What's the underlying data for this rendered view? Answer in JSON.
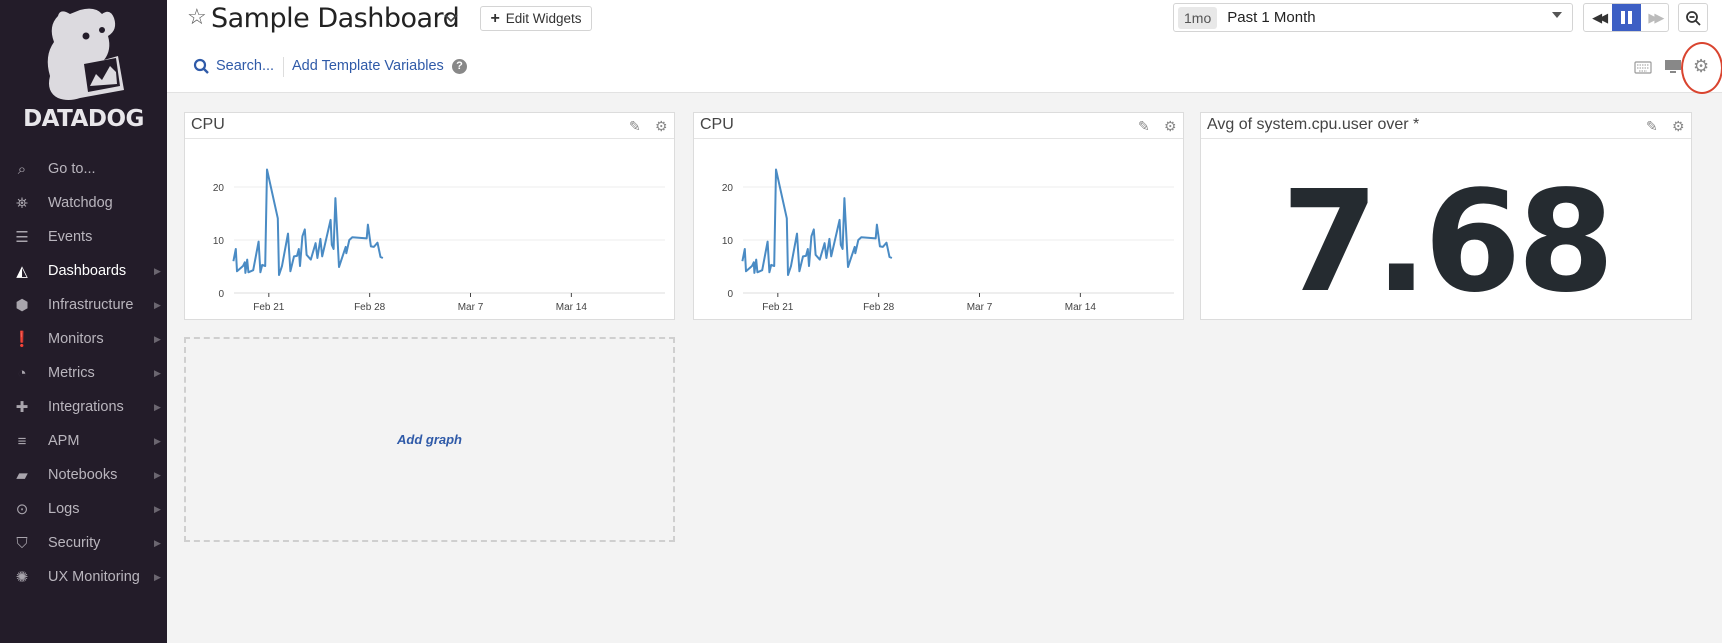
{
  "sidebar": {
    "brand": "DATADOG",
    "items": [
      {
        "label": "Go to...",
        "icon": "search-icon",
        "arrow": false
      },
      {
        "label": "Watchdog",
        "icon": "binoculars-icon",
        "arrow": false
      },
      {
        "label": "Events",
        "icon": "events-icon",
        "arrow": false
      },
      {
        "label": "Dashboards",
        "icon": "dashboards-icon",
        "arrow": true,
        "active": true
      },
      {
        "label": "Infrastructure",
        "icon": "infrastructure-icon",
        "arrow": true
      },
      {
        "label": "Monitors",
        "icon": "monitors-icon",
        "arrow": true
      },
      {
        "label": "Metrics",
        "icon": "metrics-icon",
        "arrow": true
      },
      {
        "label": "Integrations",
        "icon": "puzzle-icon",
        "arrow": true
      },
      {
        "label": "APM",
        "icon": "apm-icon",
        "arrow": true
      },
      {
        "label": "Notebooks",
        "icon": "notebook-icon",
        "arrow": true
      },
      {
        "label": "Logs",
        "icon": "logs-icon",
        "arrow": true
      },
      {
        "label": "Security",
        "icon": "shield-icon",
        "arrow": true
      },
      {
        "label": "UX Monitoring",
        "icon": "ux-monitoring-icon",
        "arrow": true
      }
    ]
  },
  "header": {
    "title": "Sample Dashboard",
    "edit_widgets": "Edit Widgets",
    "search": "Search...",
    "add_template_variables": "Add Template Variables",
    "time_badge": "1mo",
    "time_range": "Past 1 Month"
  },
  "colors": {
    "accent": "#3d5fc4",
    "line": "#4a8bc4",
    "sidebar": "#231c29",
    "annotation": "#d9442f"
  },
  "widgets": [
    {
      "title": "CPU"
    },
    {
      "title": "CPU"
    },
    {
      "title": "Avg of system.cpu.user over *",
      "value": "7.68"
    }
  ],
  "add_graph": "Add graph",
  "chart_data": [
    {
      "type": "line",
      "title": "CPU",
      "ylim": [
        0,
        23
      ],
      "yticks": [
        "0",
        "10",
        "20"
      ],
      "xticks": [
        "Feb 21",
        "Feb 28",
        "Mar 7",
        "Mar 14"
      ],
      "xlim": [
        "Feb 18 14:00",
        "Mar 20 12:00"
      ],
      "grid": true,
      "points": [
        [
          "Feb 18 13:00",
          6.0
        ],
        [
          "Feb 18 17:00",
          8.3
        ],
        [
          "Feb 18 19:00",
          4.1
        ],
        [
          "Feb 19 05:00",
          5.1
        ],
        [
          "Feb 19 08:00",
          5.8
        ],
        [
          "Feb 19 09:00",
          3.8
        ],
        [
          "Feb 19 12:00",
          6.3
        ],
        [
          "Feb 19 14:00",
          3.9
        ],
        [
          "Feb 19 22:00",
          4.3
        ],
        [
          "Feb 20 07:00",
          9.7
        ],
        [
          "Feb 20 10:00",
          3.9
        ],
        [
          "Feb 20 13:00",
          5.3
        ],
        [
          "Feb 20 18:00",
          5.1
        ],
        [
          "Feb 20 21:00",
          23.3
        ],
        [
          "Feb 21 15:00",
          14.1
        ],
        [
          "Feb 21 17:00",
          3.4
        ],
        [
          "Feb 21 22:00",
          5.1
        ],
        [
          "Feb 22 08:00",
          11.2
        ],
        [
          "Feb 22 12:00",
          4.1
        ],
        [
          "Feb 22 18:00",
          6.9
        ],
        [
          "Feb 22 23:00",
          7.0
        ],
        [
          "Feb 23 02:00",
          8.3
        ],
        [
          "Feb 23 04:00",
          5.1
        ],
        [
          "Feb 23 08:00",
          10.7
        ],
        [
          "Feb 23 12:00",
          12.0
        ],
        [
          "Feb 23 15:00",
          7.2
        ],
        [
          "Feb 23 22:00",
          6.3
        ],
        [
          "Feb 24 06:00",
          9.4
        ],
        [
          "Feb 24 09:00",
          6.6
        ],
        [
          "Feb 24 14:00",
          10.2
        ],
        [
          "Feb 24 17:00",
          6.9
        ],
        [
          "Feb 25 07:00",
          13.8
        ],
        [
          "Feb 25 09:00",
          9.1
        ],
        [
          "Feb 25 12:00",
          8.3
        ],
        [
          "Feb 25 15:00",
          17.9
        ],
        [
          "Feb 25 21:00",
          4.9
        ],
        [
          "Feb 26 08:00",
          8.7
        ],
        [
          "Feb 26 09:00",
          7.5
        ],
        [
          "Feb 26 14:00",
          10.0
        ],
        [
          "Feb 26 19:00",
          10.5
        ],
        [
          "Feb 27 19:00",
          10.3
        ],
        [
          "Feb 27 21:00",
          12.9
        ],
        [
          "Feb 28 02:00",
          8.8
        ],
        [
          "Feb 28 07:00",
          8.7
        ],
        [
          "Feb 28 13:00",
          9.5
        ],
        [
          "Feb 28 18:00",
          6.8
        ],
        [
          "Feb 28 22:00",
          6.6
        ]
      ]
    },
    {
      "type": "line",
      "title": "CPU",
      "ylim": [
        0,
        23
      ],
      "yticks": [
        "0",
        "10",
        "20"
      ],
      "xticks": [
        "Feb 21",
        "Feb 28",
        "Mar 7",
        "Mar 14"
      ],
      "xlim": [
        "Feb 18 14:00",
        "Mar 20 12:00"
      ],
      "grid": true,
      "points": [
        [
          "Feb 18 13:00",
          6.0
        ],
        [
          "Feb 18 17:00",
          8.3
        ],
        [
          "Feb 18 19:00",
          4.1
        ],
        [
          "Feb 19 05:00",
          5.1
        ],
        [
          "Feb 19 08:00",
          5.8
        ],
        [
          "Feb 19 09:00",
          3.8
        ],
        [
          "Feb 19 12:00",
          6.3
        ],
        [
          "Feb 19 14:00",
          3.9
        ],
        [
          "Feb 19 22:00",
          4.3
        ],
        [
          "Feb 20 07:00",
          9.7
        ],
        [
          "Feb 20 10:00",
          3.9
        ],
        [
          "Feb 20 13:00",
          5.3
        ],
        [
          "Feb 20 18:00",
          5.1
        ],
        [
          "Feb 20 21:00",
          23.3
        ],
        [
          "Feb 21 15:00",
          14.1
        ],
        [
          "Feb 21 17:00",
          3.4
        ],
        [
          "Feb 21 22:00",
          5.1
        ],
        [
          "Feb 22 08:00",
          11.2
        ],
        [
          "Feb 22 12:00",
          4.1
        ],
        [
          "Feb 22 18:00",
          6.9
        ],
        [
          "Feb 22 23:00",
          7.0
        ],
        [
          "Feb 23 02:00",
          8.3
        ],
        [
          "Feb 23 04:00",
          5.1
        ],
        [
          "Feb 23 08:00",
          10.7
        ],
        [
          "Feb 23 12:00",
          12.0
        ],
        [
          "Feb 23 15:00",
          7.2
        ],
        [
          "Feb 23 22:00",
          6.3
        ],
        [
          "Feb 24 06:00",
          9.4
        ],
        [
          "Feb 24 09:00",
          6.6
        ],
        [
          "Feb 24 14:00",
          10.2
        ],
        [
          "Feb 24 17:00",
          6.9
        ],
        [
          "Feb 25 07:00",
          13.8
        ],
        [
          "Feb 25 09:00",
          9.1
        ],
        [
          "Feb 25 12:00",
          8.3
        ],
        [
          "Feb 25 15:00",
          17.9
        ],
        [
          "Feb 25 21:00",
          4.9
        ],
        [
          "Feb 26 08:00",
          8.7
        ],
        [
          "Feb 26 09:00",
          7.5
        ],
        [
          "Feb 26 14:00",
          10.0
        ],
        [
          "Feb 26 19:00",
          10.5
        ],
        [
          "Feb 27 19:00",
          10.3
        ],
        [
          "Feb 27 21:00",
          12.9
        ],
        [
          "Feb 28 02:00",
          8.8
        ],
        [
          "Feb 28 07:00",
          8.7
        ],
        [
          "Feb 28 13:00",
          9.5
        ],
        [
          "Feb 28 18:00",
          6.8
        ],
        [
          "Feb 28 22:00",
          6.6
        ]
      ]
    }
  ]
}
